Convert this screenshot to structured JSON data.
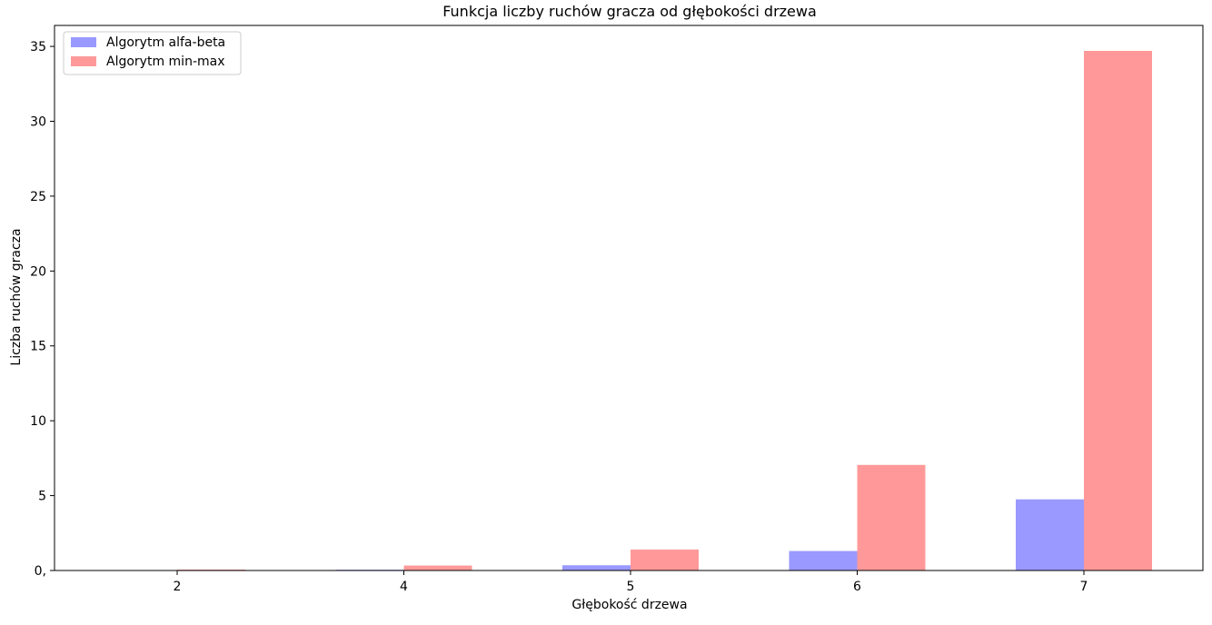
{
  "chart_data": {
    "type": "bar",
    "title": "Funkcja liczby ruchów gracza od głębokości drzewa",
    "xlabel": "Głębokość drzewa",
    "ylabel": "Liczba ruchów gracza",
    "categories": [
      "2",
      "4",
      "5",
      "6",
      "7"
    ],
    "series": [
      {
        "name": "Algorytm alfa-beta",
        "color": "#9999ff",
        "values": [
          0.005,
          0.05,
          0.35,
          1.3,
          4.75
        ]
      },
      {
        "name": "Algorytm min-max",
        "color": "#ff9999",
        "values": [
          0.06,
          0.33,
          1.4,
          7.05,
          34.7
        ]
      }
    ],
    "yticks": [
      0,
      5,
      10,
      15,
      20,
      25,
      30,
      35
    ],
    "ytick_labels": [
      "0,",
      "5",
      "10",
      "15",
      "20",
      "25",
      "30",
      "35"
    ],
    "ylim": [
      0,
      36.4
    ],
    "grid": false,
    "legend_position": "top-left"
  }
}
